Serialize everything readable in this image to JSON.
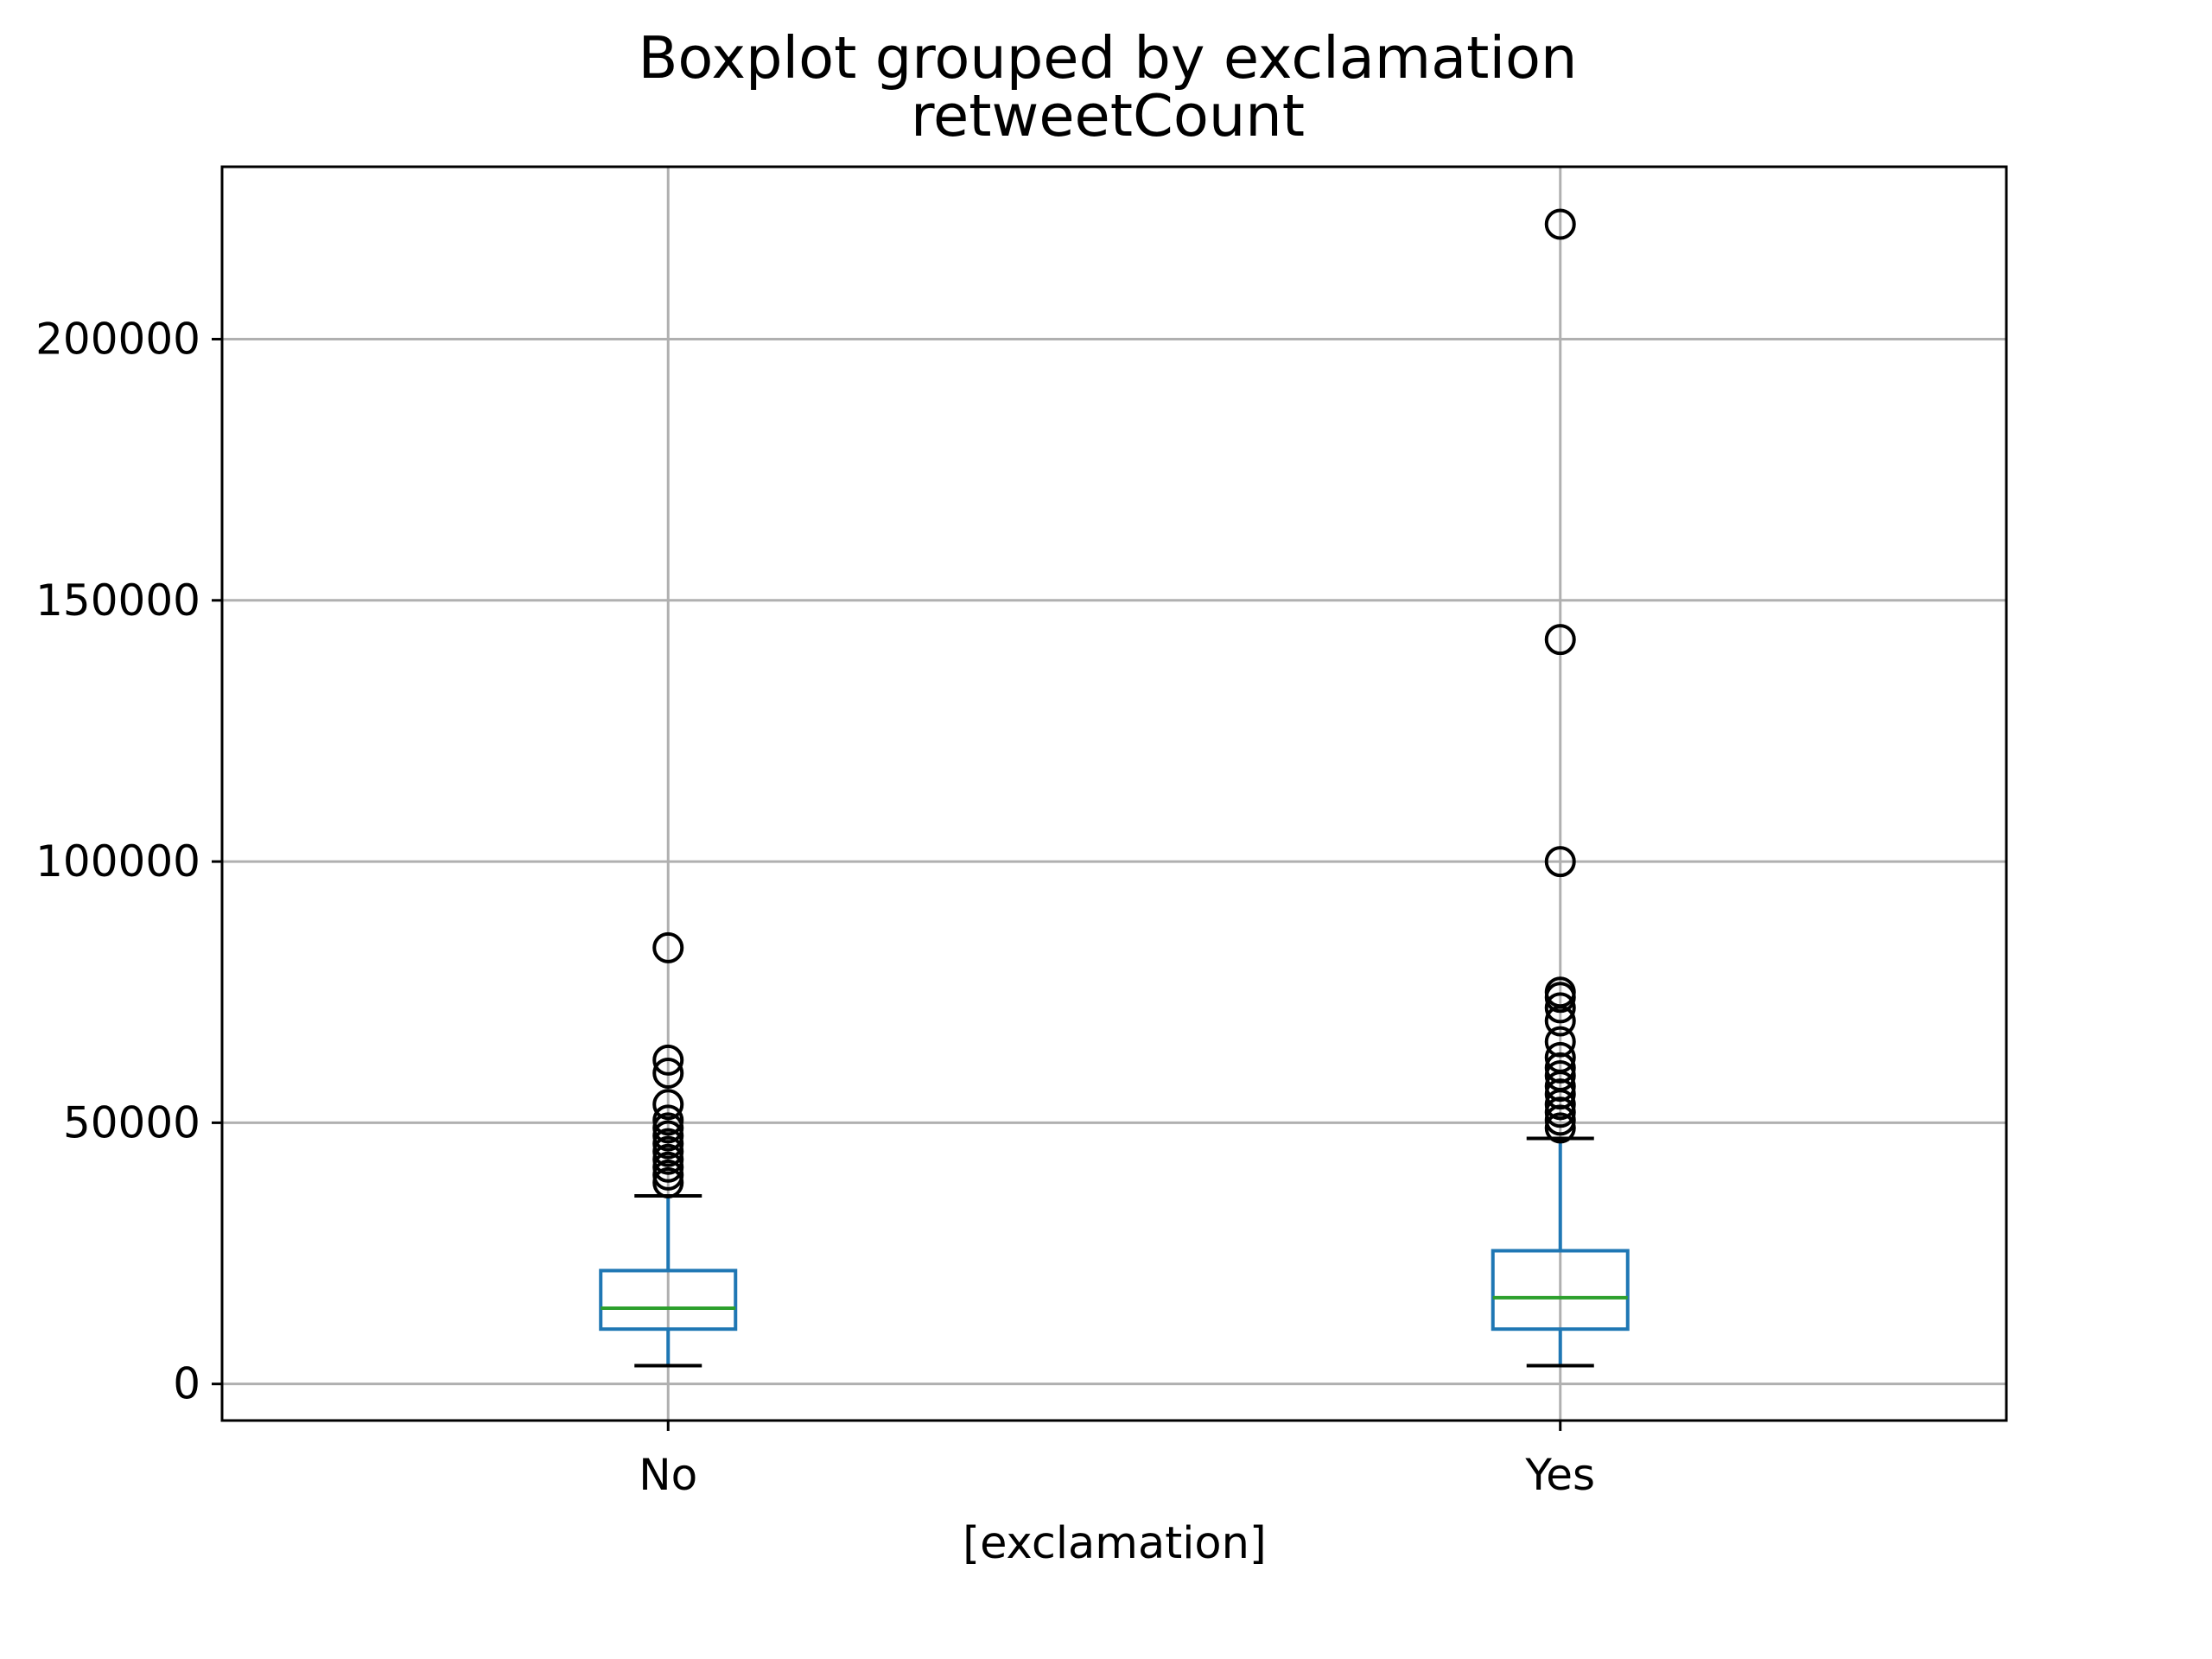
{
  "chart_data": {
    "type": "box",
    "title": "Boxplot grouped by exclamation",
    "subtitle": "retweetCount",
    "xlabel": "[exclamation]",
    "ylabel": "",
    "categories": [
      "No",
      "Yes"
    ],
    "ylim": [
      -7000,
      233000
    ],
    "yticks": [
      0,
      50000,
      100000,
      150000,
      200000
    ],
    "ytick_labels": [
      "0",
      "50000",
      "100000",
      "150000",
      "200000"
    ],
    "grid": true,
    "colors": {
      "box": "#1f77b4",
      "median": "#2ca02c",
      "whisker": "#1f77b4",
      "cap": "#000000",
      "flier": "#000000",
      "grid": "#b0b0b0",
      "axes": "#000000"
    },
    "boxes": [
      {
        "category": "No",
        "whisker_low": 3500,
        "q1": 10500,
        "median": 14500,
        "q3": 21700,
        "whisker_high": 36000,
        "fliers": [
          38500,
          40000,
          41500,
          43000,
          44500,
          46000,
          47500,
          49000,
          50500,
          53500,
          59500,
          62000,
          83500
        ]
      },
      {
        "category": "Yes",
        "whisker_low": 3500,
        "q1": 10500,
        "median": 16500,
        "q3": 25500,
        "whisker_high": 47000,
        "fliers": [
          49000,
          50500,
          52000,
          53500,
          55500,
          57000,
          59000,
          60500,
          62500,
          65500,
          69500,
          72000,
          74000,
          75000,
          100000,
          142500,
          222000
        ]
      }
    ]
  }
}
